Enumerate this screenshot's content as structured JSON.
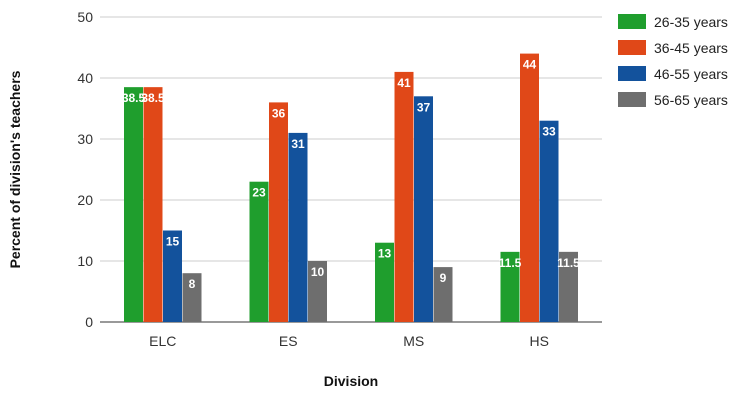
{
  "chart_data": {
    "type": "bar",
    "title": "",
    "xlabel": "Division",
    "ylabel": "Percent of division's teachers",
    "categories": [
      "ELC",
      "ES",
      "MS",
      "HS"
    ],
    "ylim": [
      0,
      50
    ],
    "yticks": [
      0,
      10,
      20,
      30,
      40,
      50
    ],
    "grid": true,
    "legend_position": "right",
    "series": [
      {
        "name": "26-35 years",
        "color": "#1f9e2d",
        "values": [
          38.5,
          23,
          13,
          11.5
        ],
        "labels": [
          "38.5",
          "23",
          "13",
          "11.5"
        ]
      },
      {
        "name": "36-45 years",
        "color": "#e04818",
        "values": [
          38.5,
          36,
          41,
          44
        ],
        "labels": [
          "38.5",
          "36",
          "41",
          "44"
        ]
      },
      {
        "name": "46-55 years",
        "color": "#13529c",
        "values": [
          15,
          31,
          37,
          33
        ],
        "labels": [
          "15",
          "31",
          "37",
          "33"
        ]
      },
      {
        "name": "56-65 years",
        "color": "#6e6e6e",
        "values": [
          8,
          10,
          9,
          11.5
        ],
        "labels": [
          "8",
          "10",
          "9",
          "11.5"
        ]
      }
    ]
  }
}
